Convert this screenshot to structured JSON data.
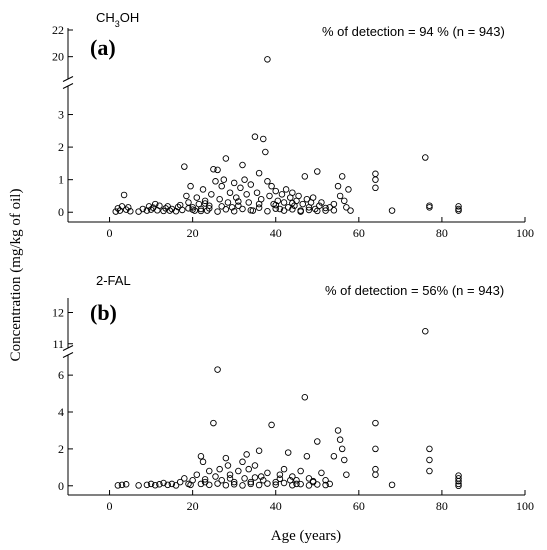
{
  "chart_data": [
    {
      "type": "scatter",
      "panel_label": "(a)",
      "compound_label": {
        "main": "CH",
        "sub": "3",
        "tail": "OH"
      },
      "annotation": "% of detection = 94 % (n = 943)",
      "xlim": [
        -10,
        100
      ],
      "upper_ylim": [
        19,
        22
      ],
      "upper_ticks": [
        20,
        22
      ],
      "lower_ylim": [
        -0.3,
        3.6
      ],
      "lower_ticks": [
        0,
        1,
        2,
        3
      ],
      "x_ticks": [
        0,
        20,
        40,
        60,
        80,
        100
      ],
      "points": [
        [
          1.5,
          0.02
        ],
        [
          2,
          0.12
        ],
        [
          2.5,
          0.05
        ],
        [
          3,
          0.18
        ],
        [
          3.5,
          0.53
        ],
        [
          4,
          0.08
        ],
        [
          4.5,
          0.15
        ],
        [
          5,
          0.03
        ],
        [
          7,
          0.02
        ],
        [
          8,
          0.1
        ],
        [
          9,
          0.05
        ],
        [
          9.5,
          0.18
        ],
        [
          10,
          0.08
        ],
        [
          10.5,
          0.14
        ],
        [
          11,
          0.25
        ],
        [
          11.5,
          0.06
        ],
        [
          12,
          0.2
        ],
        [
          13,
          0.04
        ],
        [
          13.5,
          0.12
        ],
        [
          14,
          0.18
        ],
        [
          14.5,
          0.05
        ],
        [
          15,
          0.1
        ],
        [
          16,
          0.03
        ],
        [
          16.5,
          0.16
        ],
        [
          17,
          0.22
        ],
        [
          17.5,
          0.07
        ],
        [
          18,
          1.4
        ],
        [
          18.5,
          0.5
        ],
        [
          19,
          0.3
        ],
        [
          19.5,
          0.8
        ],
        [
          20,
          0.15
        ],
        [
          20.5,
          0.05
        ],
        [
          21,
          0.45
        ],
        [
          21.5,
          0.25
        ],
        [
          22,
          0.1
        ],
        [
          22.5,
          0.7
        ],
        [
          23,
          0.35
        ],
        [
          23.5,
          0.05
        ],
        [
          24,
          0.2
        ],
        [
          24.5,
          0.55
        ],
        [
          25,
          1.32
        ],
        [
          25.5,
          0.95
        ],
        [
          26,
          1.3
        ],
        [
          26.5,
          0.4
        ],
        [
          27,
          0.8
        ],
        [
          27.5,
          1.0
        ],
        [
          28,
          1.65
        ],
        [
          28.5,
          0.3
        ],
        [
          29,
          0.6
        ],
        [
          29.5,
          0.15
        ],
        [
          30,
          0.9
        ],
        [
          30.5,
          0.45
        ],
        [
          31,
          0.2
        ],
        [
          31.5,
          0.75
        ],
        [
          32,
          1.45
        ],
        [
          32.5,
          1.0
        ],
        [
          33,
          0.55
        ],
        [
          33.5,
          0.3
        ],
        [
          34,
          0.85
        ],
        [
          34.5,
          0.05
        ],
        [
          35,
          2.32
        ],
        [
          35.5,
          0.6
        ],
        [
          36,
          1.2
        ],
        [
          36.5,
          0.4
        ],
        [
          37,
          2.25
        ],
        [
          37.5,
          1.85
        ],
        [
          38,
          0.95
        ],
        [
          38.5,
          0.5
        ],
        [
          39,
          0.8
        ],
        [
          39.5,
          0.25
        ],
        [
          40,
          0.65
        ],
        [
          40.5,
          0.35
        ],
        [
          41,
          0.1
        ],
        [
          41.5,
          0.55
        ],
        [
          42,
          0.3
        ],
        [
          42.5,
          0.7
        ],
        [
          43,
          0.15
        ],
        [
          43.5,
          0.45
        ],
        [
          44,
          0.6
        ],
        [
          44.5,
          0.2
        ],
        [
          45,
          0.35
        ],
        [
          45.5,
          0.5
        ],
        [
          46,
          0.05
        ],
        [
          46.5,
          0.25
        ],
        [
          47,
          1.1
        ],
        [
          47.5,
          0.4
        ],
        [
          48,
          0.15
        ],
        [
          48.5,
          0.3
        ],
        [
          49,
          0.45
        ],
        [
          49.5,
          0.1
        ],
        [
          50,
          1.25
        ],
        [
          50.5,
          0.2
        ],
        [
          51,
          0.3
        ],
        [
          52,
          0.05
        ],
        [
          53,
          0.15
        ],
        [
          54,
          0.25
        ],
        [
          55,
          0.8
        ],
        [
          55.5,
          0.5
        ],
        [
          56,
          1.1
        ],
        [
          56.5,
          0.35
        ],
        [
          57,
          0.15
        ],
        [
          57.5,
          0.7
        ],
        [
          58,
          0.05
        ],
        [
          20,
          0.08
        ],
        [
          22,
          0.04
        ],
        [
          24,
          0.12
        ],
        [
          26,
          0.02
        ],
        [
          28,
          0.09
        ],
        [
          30,
          0.03
        ],
        [
          32,
          0.1
        ],
        [
          34,
          0.06
        ],
        [
          36,
          0.14
        ],
        [
          38,
          0.03
        ],
        [
          40,
          0.11
        ],
        [
          42,
          0.05
        ],
        [
          44,
          0.09
        ],
        [
          46,
          0.02
        ],
        [
          48,
          0.07
        ],
        [
          50,
          0.04
        ],
        [
          52,
          0.13
        ],
        [
          54,
          0.06
        ],
        [
          36,
          0.25
        ],
        [
          40,
          0.22
        ],
        [
          44,
          0.28
        ],
        [
          31,
          0.33
        ],
        [
          27,
          0.18
        ],
        [
          23,
          0.27
        ],
        [
          19,
          0.12
        ],
        [
          64,
          1.18
        ],
        [
          64,
          1.0
        ],
        [
          64,
          0.75
        ],
        [
          68,
          0.05
        ],
        [
          76,
          1.68
        ],
        [
          77,
          0.2
        ],
        [
          77,
          0.15
        ],
        [
          84,
          0.18
        ],
        [
          84,
          0.1
        ],
        [
          84,
          0.05
        ],
        [
          38,
          19.8
        ]
      ]
    },
    {
      "type": "scatter",
      "panel_label": "(b)",
      "compound_label": {
        "main": "2-FAL"
      },
      "annotation": "% of detection = 56% (n = 943)",
      "xlim": [
        -10,
        100
      ],
      "upper_ylim": [
        10.8,
        12.4
      ],
      "upper_ticks": [
        11,
        12
      ],
      "lower_ylim": [
        -0.5,
        7.2
      ],
      "lower_ticks": [
        0,
        2,
        4,
        6
      ],
      "x_ticks": [
        0,
        20,
        40,
        60,
        80,
        100
      ],
      "points": [
        [
          2,
          0.02
        ],
        [
          3,
          0.05
        ],
        [
          4,
          0.08
        ],
        [
          7,
          0.02
        ],
        [
          9,
          0.05
        ],
        [
          10,
          0.1
        ],
        [
          11,
          0.03
        ],
        [
          12,
          0.08
        ],
        [
          13,
          0.15
        ],
        [
          14,
          0.05
        ],
        [
          15,
          0.1
        ],
        [
          16,
          0.02
        ],
        [
          17,
          0.2
        ],
        [
          18,
          0.4
        ],
        [
          19,
          0.1
        ],
        [
          19.5,
          0.05
        ],
        [
          20,
          0.3
        ],
        [
          21,
          0.6
        ],
        [
          22,
          1.6
        ],
        [
          22.5,
          1.3
        ],
        [
          23,
          0.2
        ],
        [
          24,
          0.8
        ],
        [
          25,
          3.4
        ],
        [
          25.5,
          0.5
        ],
        [
          26,
          6.3
        ],
        [
          26.5,
          0.9
        ],
        [
          27,
          0.3
        ],
        [
          28,
          1.5
        ],
        [
          28.5,
          1.1
        ],
        [
          29,
          0.6
        ],
        [
          30,
          0.2
        ],
        [
          31,
          0.8
        ],
        [
          32,
          1.3
        ],
        [
          32.5,
          0.4
        ],
        [
          33,
          1.7
        ],
        [
          33.5,
          0.9
        ],
        [
          34,
          0.2
        ],
        [
          35,
          1.1
        ],
        [
          36,
          1.9
        ],
        [
          36.5,
          0.5
        ],
        [
          37,
          0.3
        ],
        [
          38,
          0.7
        ],
        [
          39,
          3.3
        ],
        [
          40,
          0.2
        ],
        [
          41,
          0.6
        ],
        [
          42,
          0.9
        ],
        [
          43,
          1.8
        ],
        [
          43.5,
          0.3
        ],
        [
          44,
          0.5
        ],
        [
          45,
          0.1
        ],
        [
          46,
          0.8
        ],
        [
          47,
          4.8
        ],
        [
          47.5,
          1.6
        ],
        [
          48,
          0.4
        ],
        [
          49,
          0.2
        ],
        [
          50,
          2.4
        ],
        [
          51,
          0.7
        ],
        [
          52,
          0.3
        ],
        [
          53,
          0.1
        ],
        [
          54,
          1.6
        ],
        [
          55,
          3.0
        ],
        [
          55.5,
          2.5
        ],
        [
          56,
          2.0
        ],
        [
          56.5,
          1.4
        ],
        [
          57,
          0.6
        ],
        [
          22,
          0.1
        ],
        [
          24,
          0.05
        ],
        [
          26,
          0.12
        ],
        [
          28,
          0.03
        ],
        [
          30,
          0.08
        ],
        [
          32,
          0.02
        ],
        [
          34,
          0.1
        ],
        [
          36,
          0.04
        ],
        [
          38,
          0.12
        ],
        [
          40,
          0.06
        ],
        [
          42,
          0.15
        ],
        [
          44,
          0.03
        ],
        [
          46,
          0.09
        ],
        [
          48,
          0.02
        ],
        [
          50,
          0.07
        ],
        [
          52,
          0.04
        ],
        [
          23,
          0.35
        ],
        [
          29,
          0.4
        ],
        [
          35,
          0.45
        ],
        [
          41,
          0.38
        ],
        [
          45,
          0.3
        ],
        [
          49,
          0.25
        ],
        [
          64,
          3.4
        ],
        [
          64,
          2.0
        ],
        [
          64,
          0.9
        ],
        [
          64,
          0.6
        ],
        [
          68,
          0.05
        ],
        [
          76,
          11.4
        ],
        [
          77,
          2.0
        ],
        [
          77,
          1.4
        ],
        [
          77,
          0.8
        ],
        [
          84,
          0.55
        ],
        [
          84,
          0.4
        ],
        [
          84,
          0.25
        ],
        [
          84,
          0.1
        ],
        [
          84,
          0.0
        ]
      ]
    }
  ],
  "axes": {
    "ylabel": "Concentration (mg/kg of oil)",
    "xlabel": "Age (years)"
  }
}
